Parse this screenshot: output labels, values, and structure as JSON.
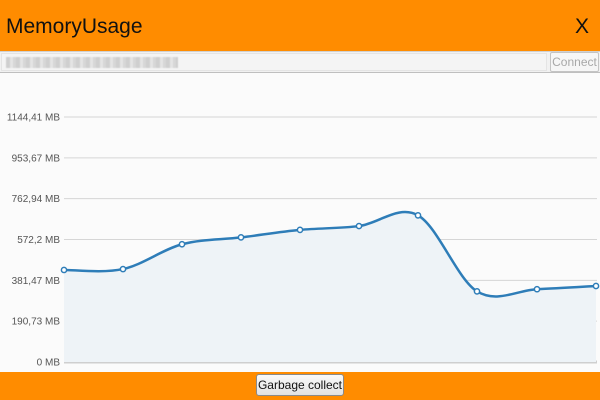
{
  "window": {
    "title": "MemoryUsage",
    "close_label": "X"
  },
  "connection": {
    "address_value": "",
    "connect_label": "Connect"
  },
  "footer": {
    "gc_label": "Garbage collect"
  },
  "colors": {
    "accent": "#ff8c00",
    "line": "#2e7db8",
    "fill": "#eef3f7"
  },
  "chart_data": {
    "type": "area",
    "title": "",
    "xlabel": "",
    "ylabel": "",
    "y_ticks": [
      {
        "value": 0,
        "label": "0 MB"
      },
      {
        "value": 190.73,
        "label": "190,73 MB"
      },
      {
        "value": 381.47,
        "label": "381,47 MB"
      },
      {
        "value": 572.2,
        "label": "572,2 MB"
      },
      {
        "value": 762.94,
        "label": "762,94 MB"
      },
      {
        "value": 953.67,
        "label": "953,67 MB"
      },
      {
        "value": 1144.41,
        "label": "1144,41 MB"
      }
    ],
    "ylim": [
      0,
      1144.41
    ],
    "grid": true,
    "legend": "none",
    "series": [
      {
        "values": [
          430,
          434,
          550,
          582,
          617,
          635,
          685,
          330,
          340,
          355
        ]
      }
    ]
  }
}
